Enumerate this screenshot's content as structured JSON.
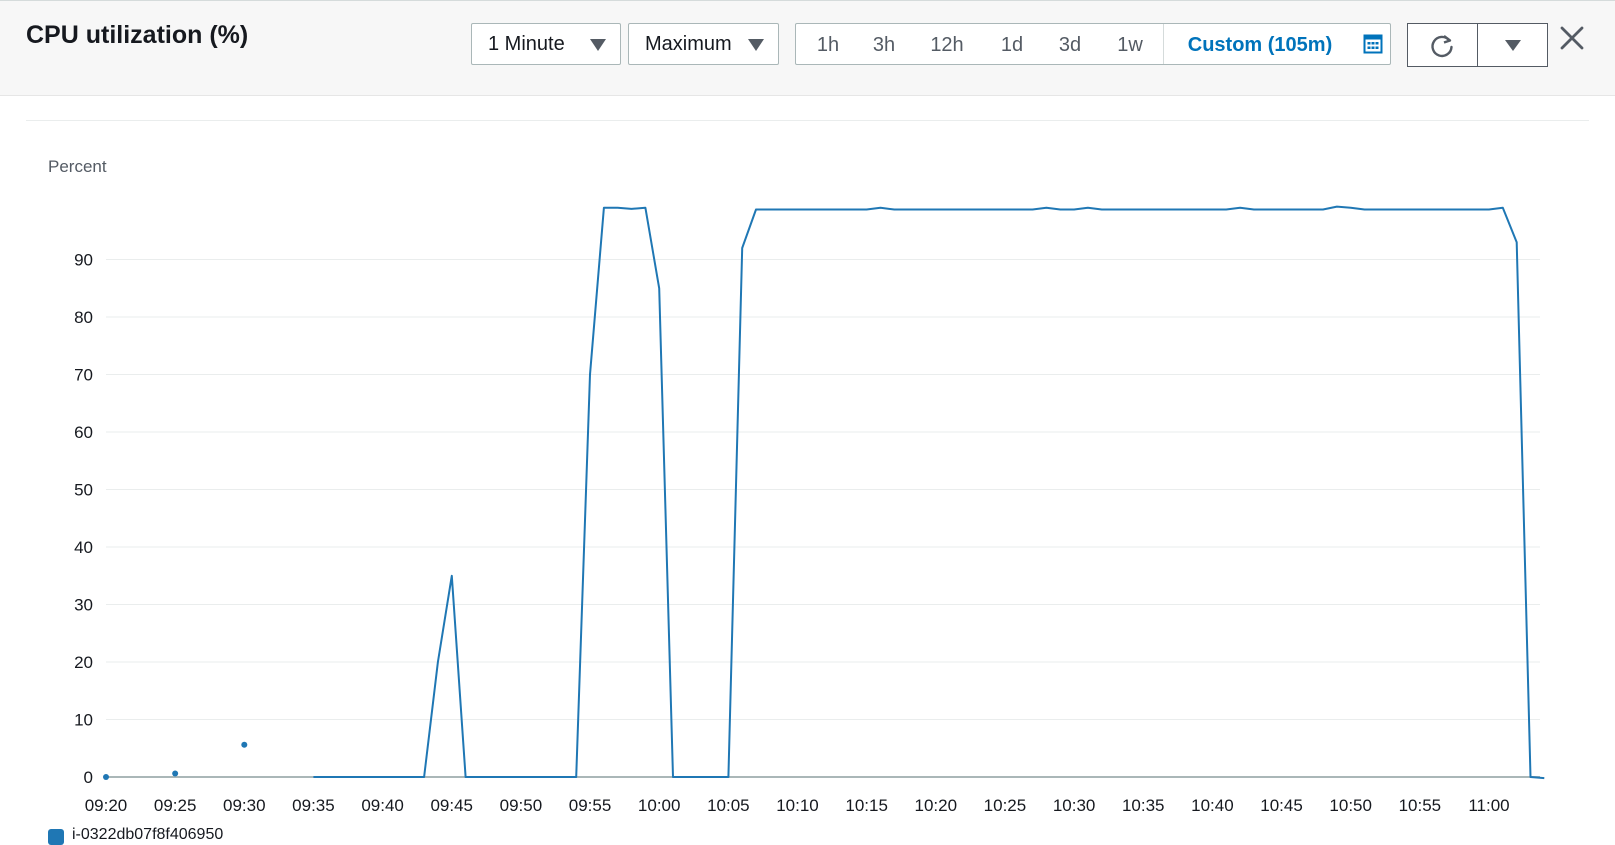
{
  "header": {
    "title": "CPU utilization (%)",
    "period": "1 Minute",
    "statistic": "Maximum",
    "ranges": [
      "1h",
      "3h",
      "12h",
      "1d",
      "3d",
      "1w"
    ],
    "custom_range": "Custom (105m)"
  },
  "legend": {
    "label": "i-0322db07f8f406950"
  },
  "colors": {
    "series": "#1f77b4",
    "accent": "#0073bb"
  },
  "icons": [
    "chevron-down-icon",
    "calendar-icon",
    "refresh-icon",
    "close-icon"
  ],
  "chart_data": {
    "type": "line",
    "ylabel": "Percent",
    "ylim": [
      0,
      100
    ],
    "yticks": [
      0,
      10,
      20,
      30,
      40,
      50,
      60,
      70,
      80,
      90
    ],
    "xlim": [
      "09:20",
      "11:03"
    ],
    "xticks": [
      "09:20",
      "09:25",
      "09:30",
      "09:35",
      "09:40",
      "09:45",
      "09:50",
      "09:55",
      "10:00",
      "10:05",
      "10:10",
      "10:15",
      "10:20",
      "10:25",
      "10:30",
      "10:35",
      "10:40",
      "10:45",
      "10:50",
      "10:55",
      "11:00"
    ],
    "grid": true,
    "isolated_points": [
      {
        "x": "09:20",
        "y": 0
      },
      {
        "x": "09:25",
        "y": 0.6
      },
      {
        "x": "09:30",
        "y": 5.6
      }
    ],
    "series": [
      {
        "name": "i-0322db07f8f406950",
        "points": [
          {
            "x": "09:35",
            "y": 0
          },
          {
            "x": "09:43",
            "y": 0
          },
          {
            "x": "09:44",
            "y": 20
          },
          {
            "x": "09:45",
            "y": 35
          },
          {
            "x": "09:46",
            "y": 0
          },
          {
            "x": "09:54",
            "y": 0
          },
          {
            "x": "09:55",
            "y": 70
          },
          {
            "x": "09:56",
            "y": 99
          },
          {
            "x": "09:57",
            "y": 99
          },
          {
            "x": "09:58",
            "y": 98.8
          },
          {
            "x": "09:59",
            "y": 99
          },
          {
            "x": "10:00",
            "y": 85
          },
          {
            "x": "10:01",
            "y": 0
          },
          {
            "x": "10:05",
            "y": 0
          },
          {
            "x": "10:06",
            "y": 92
          },
          {
            "x": "10:07",
            "y": 98.7
          },
          {
            "x": "10:15",
            "y": 98.7
          },
          {
            "x": "10:16",
            "y": 99
          },
          {
            "x": "10:17",
            "y": 98.7
          },
          {
            "x": "10:27",
            "y": 98.7
          },
          {
            "x": "10:28",
            "y": 99
          },
          {
            "x": "10:29",
            "y": 98.7
          },
          {
            "x": "10:30",
            "y": 98.7
          },
          {
            "x": "10:31",
            "y": 99
          },
          {
            "x": "10:32",
            "y": 98.7
          },
          {
            "x": "10:41",
            "y": 98.7
          },
          {
            "x": "10:42",
            "y": 99
          },
          {
            "x": "10:43",
            "y": 98.7
          },
          {
            "x": "10:48",
            "y": 98.7
          },
          {
            "x": "10:49",
            "y": 99.2
          },
          {
            "x": "10:50",
            "y": 99
          },
          {
            "x": "10:51",
            "y": 98.7
          },
          {
            "x": "11:00",
            "y": 98.7
          },
          {
            "x": "11:01",
            "y": 99
          },
          {
            "x": "11:02",
            "y": 93
          },
          {
            "x": "11:03",
            "y": 0
          },
          {
            "x": "11:04",
            "y": -0.2
          }
        ]
      }
    ]
  }
}
